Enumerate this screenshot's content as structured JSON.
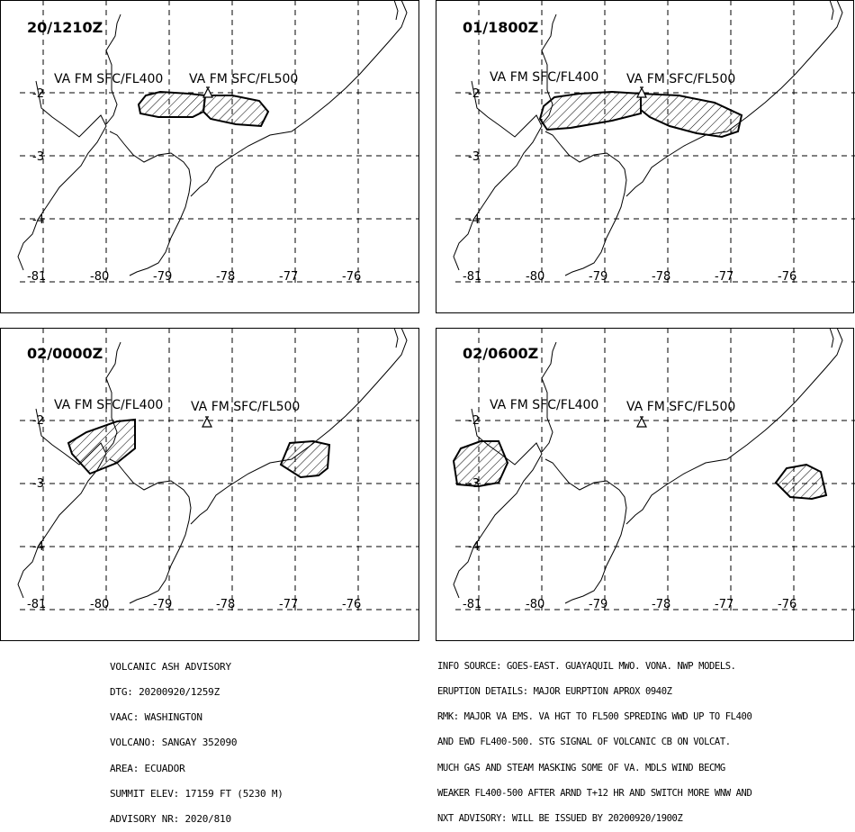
{
  "panels": [
    {
      "time_label": "20/1210Z",
      "labels": [
        "VA FM SFC/FL400",
        "VA FM SFC/FL500"
      ],
      "lon_ticks": [
        "-81",
        "-80",
        "-79",
        "-78",
        "-77",
        "-76"
      ],
      "lat_ticks": [
        "-2",
        "-3",
        "-4"
      ]
    },
    {
      "time_label": "01/1800Z",
      "labels": [
        "VA FM SFC/FL400",
        "VA FM SFC/FL500"
      ],
      "lon_ticks": [
        "-81",
        "-80",
        "-79",
        "-78",
        "-77",
        "-76"
      ],
      "lat_ticks": [
        "-2",
        "-3",
        "-4"
      ]
    },
    {
      "time_label": "02/0000Z",
      "labels": [
        "VA FM SFC/FL400",
        "VA FM SFC/FL500"
      ],
      "lon_ticks": [
        "-81",
        "-80",
        "-79",
        "-78",
        "-77",
        "-76"
      ],
      "lat_ticks": [
        "-2",
        "-3",
        "-4"
      ]
    },
    {
      "time_label": "02/0600Z",
      "labels": [
        "VA FM SFC/FL400",
        "VA FM SFC/FL500"
      ],
      "lon_ticks": [
        "-81",
        "-80",
        "-79",
        "-78",
        "-77",
        "-76"
      ],
      "lat_ticks": [
        "-2",
        "-3",
        "-4"
      ]
    }
  ],
  "advisory_left": [
    "VOLCANIC ASH ADVISORY",
    "DTG: 20200920/1259Z",
    "VAAC: WASHINGTON",
    "VOLCANO: SANGAY 352090",
    "AREA: ECUADOR",
    "SUMMIT ELEV: 17159 FT (5230 M)",
    "ADVISORY NR: 2020/810"
  ],
  "advisory_right": [
    "INFO SOURCE: GOES-EAST. GUAYAQUIL MWO. VONA. NWP MODELS.",
    "ERUPTION DETAILS: MAJOR EURPTION APROX 0940Z",
    "RMK: MAJOR VA EMS. VA HGT TO FL500 SPREDING WWD UP TO FL400",
    "AND EWD FL400-500. STG SIGNAL OF VOLCANIC CB ON VOLCAT.",
    "MUCH GAS AND STEAM MASKING SOME OF VA. MDLS WIND BECMG",
    "WEAKER FL400-500 AFTER ARND T+12 HR AND SWITCH MORE WNW AND",
    "NXT ADVISORY: WILL BE ISSUED BY 20200920/1900Z"
  ],
  "colors": {
    "line": "#000000",
    "background": "#ffffff"
  }
}
